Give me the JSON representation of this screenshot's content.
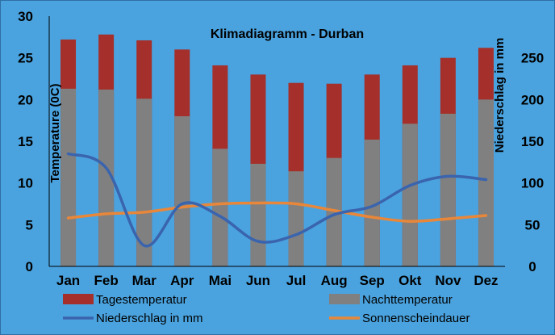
{
  "chart_data": {
    "type": "bar",
    "title": "Klimadiagramm -  Durban",
    "ylabel": "Temperature (0C)",
    "y2label": "Niederschlag in mm",
    "ylim": [
      0,
      30
    ],
    "y2lim": [
      0,
      300
    ],
    "yticks": [
      "0",
      "5",
      "10",
      "15",
      "20",
      "25",
      "30"
    ],
    "y2ticks": [
      "0",
      "50",
      "100",
      "150",
      "200",
      "250"
    ],
    "categories": [
      "Jan",
      "Feb",
      "Mar",
      "Apr",
      "Mai",
      "Jun",
      "Jul",
      "Aug",
      "Sep",
      "Okt",
      "Nov",
      "Dez"
    ],
    "series": [
      {
        "name": "Tagestemperatur",
        "type": "bar",
        "axis": "left",
        "color": "#a52f2a",
        "values": [
          27.2,
          27.8,
          27.1,
          26.0,
          24.1,
          23.0,
          22.0,
          21.9,
          23.0,
          24.1,
          25.0,
          26.2
        ]
      },
      {
        "name": "Nachttemperatur",
        "type": "bar",
        "axis": "left",
        "color": "#808080",
        "values": [
          21.3,
          21.2,
          20.1,
          18.0,
          14.1,
          12.3,
          11.4,
          13.0,
          15.2,
          17.1,
          18.3,
          20.0
        ]
      },
      {
        "name": "Niederschlag in mm",
        "type": "line",
        "axis": "right",
        "color": "#3a64ad",
        "values": [
          135,
          118,
          25,
          75,
          60,
          30,
          38,
          62,
          72,
          97,
          108,
          104
        ]
      },
      {
        "name": "Sonnenscheindauer",
        "type": "line",
        "axis": "left",
        "color": "#e8873a",
        "values": [
          5.8,
          6.3,
          6.5,
          7.1,
          7.5,
          7.6,
          7.5,
          6.7,
          5.9,
          5.4,
          5.7,
          6.1
        ]
      }
    ],
    "legend_position": "bottom",
    "grid": false
  }
}
